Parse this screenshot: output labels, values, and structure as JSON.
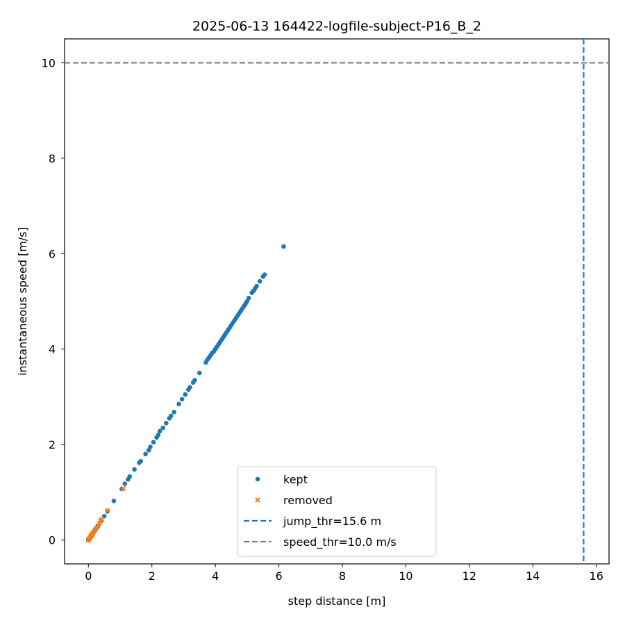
{
  "chart_data": {
    "type": "scatter",
    "title": "2025-06-13 164422-logfile-subject-P16_B_2",
    "xlabel": "step distance [m]",
    "ylabel": "instantaneous speed [m/s]",
    "xlim": [
      -0.75,
      16.4
    ],
    "ylim": [
      -0.5,
      10.5
    ],
    "xticks": [
      0,
      2,
      4,
      6,
      8,
      10,
      12,
      14,
      16
    ],
    "yticks": [
      0,
      2,
      4,
      6,
      8,
      10
    ],
    "grid": false,
    "legend_position": "bottom-center",
    "series": [
      {
        "name": "kept",
        "marker": "circle",
        "color": "#1f77b4",
        "points": [
          [
            0.0,
            0.0
          ],
          [
            0.02,
            0.02
          ],
          [
            0.04,
            0.04
          ],
          [
            0.06,
            0.06
          ],
          [
            0.1,
            0.1
          ],
          [
            0.15,
            0.15
          ],
          [
            0.2,
            0.2
          ],
          [
            0.25,
            0.25
          ],
          [
            0.3,
            0.3
          ],
          [
            0.4,
            0.4
          ],
          [
            0.5,
            0.5
          ],
          [
            0.6,
            0.6
          ],
          [
            0.8,
            0.82
          ],
          [
            1.05,
            1.07
          ],
          [
            1.15,
            1.18
          ],
          [
            1.25,
            1.27
          ],
          [
            1.3,
            1.33
          ],
          [
            1.45,
            1.48
          ],
          [
            1.6,
            1.62
          ],
          [
            1.65,
            1.65
          ],
          [
            1.8,
            1.8
          ],
          [
            1.9,
            1.88
          ],
          [
            1.95,
            1.95
          ],
          [
            2.05,
            2.05
          ],
          [
            2.15,
            2.15
          ],
          [
            2.2,
            2.2
          ],
          [
            2.25,
            2.28
          ],
          [
            2.35,
            2.35
          ],
          [
            2.45,
            2.45
          ],
          [
            2.55,
            2.55
          ],
          [
            2.6,
            2.6
          ],
          [
            2.7,
            2.68
          ],
          [
            2.85,
            2.85
          ],
          [
            2.95,
            2.95
          ],
          [
            3.05,
            3.05
          ],
          [
            3.15,
            3.15
          ],
          [
            3.2,
            3.2
          ],
          [
            3.3,
            3.3
          ],
          [
            3.35,
            3.35
          ],
          [
            3.5,
            3.5
          ],
          [
            3.7,
            3.72
          ],
          [
            3.75,
            3.78
          ],
          [
            3.8,
            3.82
          ],
          [
            3.85,
            3.87
          ],
          [
            3.9,
            3.92
          ],
          [
            3.95,
            3.95
          ],
          [
            4.0,
            4.0
          ],
          [
            4.05,
            4.05
          ],
          [
            4.1,
            4.1
          ],
          [
            4.15,
            4.15
          ],
          [
            4.2,
            4.2
          ],
          [
            4.25,
            4.25
          ],
          [
            4.3,
            4.3
          ],
          [
            4.35,
            4.35
          ],
          [
            4.4,
            4.4
          ],
          [
            4.45,
            4.45
          ],
          [
            4.5,
            4.5
          ],
          [
            4.55,
            4.55
          ],
          [
            4.6,
            4.6
          ],
          [
            4.65,
            4.65
          ],
          [
            4.7,
            4.7
          ],
          [
            4.75,
            4.75
          ],
          [
            4.8,
            4.8
          ],
          [
            4.85,
            4.85
          ],
          [
            4.9,
            4.9
          ],
          [
            4.95,
            4.95
          ],
          [
            5.0,
            5.0
          ],
          [
            5.05,
            5.07
          ],
          [
            5.15,
            5.18
          ],
          [
            5.2,
            5.22
          ],
          [
            5.25,
            5.27
          ],
          [
            5.3,
            5.32
          ],
          [
            5.4,
            5.42
          ],
          [
            5.5,
            5.52
          ],
          [
            5.55,
            5.56
          ],
          [
            6.15,
            6.15
          ]
        ]
      },
      {
        "name": "removed",
        "marker": "x",
        "color": "#ff7f0e",
        "points": [
          [
            0.0,
            0.0
          ],
          [
            0.03,
            0.03
          ],
          [
            0.05,
            0.05
          ],
          [
            0.08,
            0.08
          ],
          [
            0.1,
            0.1
          ],
          [
            0.12,
            0.12
          ],
          [
            0.15,
            0.15
          ],
          [
            0.2,
            0.2
          ],
          [
            0.25,
            0.25
          ],
          [
            0.3,
            0.3
          ],
          [
            0.35,
            0.35
          ],
          [
            0.38,
            0.4
          ],
          [
            0.42,
            0.43
          ],
          [
            0.6,
            0.62
          ],
          [
            1.1,
            1.08
          ]
        ]
      }
    ],
    "reference_lines": [
      {
        "name": "jump_thr=15.6 m",
        "orientation": "vertical",
        "value": 15.6,
        "color": "#1f77b4",
        "style": "dashed"
      },
      {
        "name": "speed_thr=10.0 m/s",
        "orientation": "horizontal",
        "value": 10.0,
        "color": "#808080",
        "style": "dashed"
      }
    ]
  }
}
